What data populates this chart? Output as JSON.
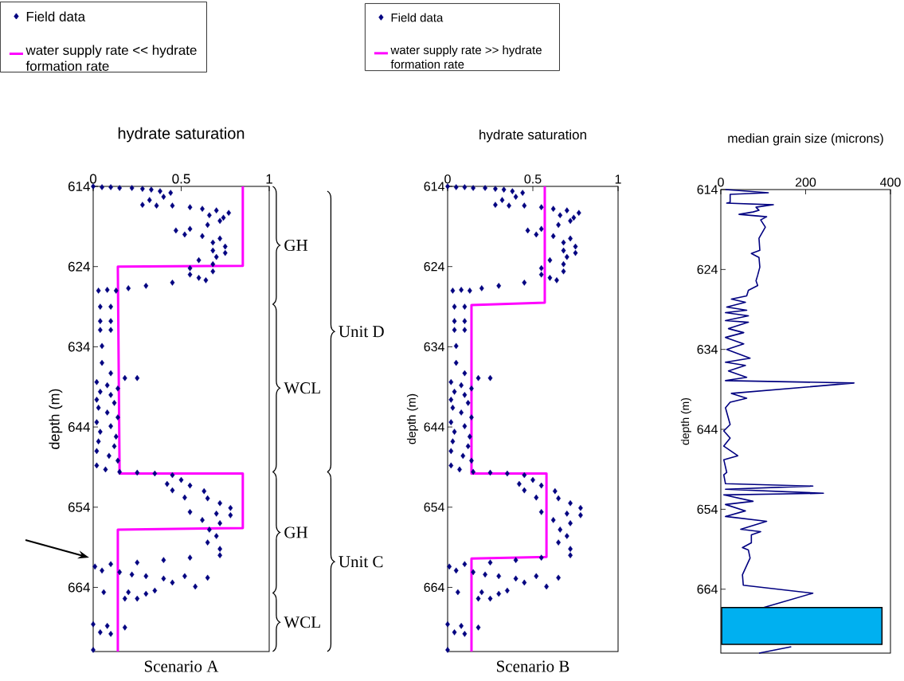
{
  "chart_data": [
    {
      "type": "scatter",
      "title": "hydrate saturation",
      "ylabel": "depth (m)",
      "xlim": [
        0,
        1
      ],
      "ylim": [
        672,
        614
      ],
      "xticks": [
        0,
        0.5,
        1
      ],
      "yticks": [
        614,
        624,
        634,
        644,
        654,
        664
      ],
      "legend": "top left",
      "series": [
        {
          "name": "Field data",
          "marker": "diamond",
          "color": "#000080",
          "x": [
            0.0,
            0.05,
            0.1,
            0.15,
            0.22,
            0.28,
            0.33,
            0.38,
            0.44,
            0.4,
            0.32,
            0.28,
            0.36,
            0.45,
            0.55,
            0.62,
            0.7,
            0.77,
            0.66,
            0.74,
            0.72,
            0.65,
            0.55,
            0.47,
            0.52,
            0.62,
            0.72,
            0.68,
            0.75,
            0.68,
            0.75,
            0.7,
            0.6,
            0.68,
            0.55,
            0.68,
            0.55,
            0.6,
            0.64,
            0.45,
            0.3,
            0.2,
            0.08,
            0.03,
            0.13,
            0.04,
            0.1,
            0.04,
            0.1,
            0.04,
            0.1,
            0.05,
            0.05,
            0.1,
            0.18,
            0.25,
            0.02,
            0.08,
            0.14,
            0.04,
            0.1,
            0.02,
            0.12,
            0.03,
            0.08,
            0.14,
            0.02,
            0.1,
            0.04,
            0.13,
            0.03,
            0.12,
            0.02,
            0.09,
            0.14,
            0.02,
            0.07,
            0.15,
            0.25,
            0.35,
            0.45,
            0.5,
            0.42,
            0.55,
            0.45,
            0.63,
            0.52,
            0.65,
            0.72,
            0.78,
            0.55,
            0.7,
            0.78,
            0.62,
            0.72,
            0.66,
            0.7,
            0.65,
            0.72,
            0.72,
            0.55,
            0.4,
            0.25,
            0.1,
            0.01,
            0.05,
            0.15,
            0.22,
            0.3,
            0.4,
            0.52,
            0.65,
            0.45,
            0.58,
            0.35,
            0.2,
            0.06,
            0.3,
            0.25,
            0.18,
            0.0,
            0.08,
            0.18,
            0.04,
            0.1,
            0.0
          ],
          "values": [
            614.0,
            614.1,
            614.1,
            614.2,
            614.2,
            614.3,
            614.4,
            614.6,
            614.8,
            615.3,
            615.7,
            616.3,
            616.4,
            616.4,
            616.6,
            616.8,
            617.0,
            617.3,
            617.6,
            617.9,
            618.3,
            618.8,
            619.3,
            619.5,
            620.0,
            620.2,
            620.5,
            621.0,
            621.5,
            622.0,
            622.3,
            622.8,
            623.2,
            623.7,
            624.2,
            624.6,
            625.0,
            625.4,
            625.7,
            626.0,
            626.4,
            626.7,
            626.9,
            627.0,
            627.0,
            629.0,
            629.0,
            630.8,
            630.8,
            631.9,
            631.9,
            633.9,
            636.0,
            637.3,
            637.9,
            637.9,
            638.4,
            638.8,
            639.2,
            639.6,
            640.0,
            640.6,
            641.0,
            641.6,
            642.2,
            642.8,
            643.4,
            643.9,
            644.6,
            645.2,
            645.8,
            646.4,
            647.0,
            647.6,
            648.2,
            648.8,
            649.3,
            649.6,
            649.7,
            649.8,
            650.0,
            650.6,
            651.1,
            651.3,
            651.9,
            652.0,
            652.8,
            652.9,
            653.5,
            654.1,
            654.6,
            654.8,
            655.0,
            655.6,
            656.0,
            656.8,
            657.6,
            658.4,
            659.2,
            660.0,
            660.3,
            660.6,
            660.9,
            661.1,
            661.4,
            661.9,
            662.1,
            662.4,
            662.6,
            662.9,
            662.6,
            662.8,
            663.4,
            663.9,
            664.4,
            664.6,
            664.6,
            664.8,
            665.4,
            665.4,
            668.6,
            668.8,
            669.0,
            669.6,
            669.8,
            671.8
          ]
        },
        {
          "name": "water supply rate << hydrate formation rate",
          "type": "line",
          "color": "#ff00ff",
          "x": [
            0.85,
            0.85,
            0.14,
            0.15,
            0.85,
            0.85,
            0.14,
            0.14
          ],
          "values": [
            614,
            623.9,
            624.0,
            649.8,
            649.8,
            656.6,
            656.8,
            672
          ]
        }
      ],
      "annotations": [
        "Scenario A",
        "GH",
        "WCL",
        "GH",
        "WCL",
        "Unit D",
        "Unit C"
      ]
    },
    {
      "type": "scatter",
      "title": "hydrate saturation",
      "ylabel": "depth (m)",
      "xlim": [
        0,
        1
      ],
      "ylim": [
        672,
        614
      ],
      "xticks": [
        0,
        0.5,
        1
      ],
      "yticks": [
        614,
        624,
        634,
        644,
        654,
        664
      ],
      "legend": "top left",
      "series": [
        {
          "name": "Field data",
          "marker": "diamond",
          "color": "#000080",
          "x": [
            0.0,
            0.05,
            0.1,
            0.15,
            0.22,
            0.28,
            0.33,
            0.38,
            0.44,
            0.4,
            0.32,
            0.28,
            0.36,
            0.45,
            0.55,
            0.62,
            0.7,
            0.77,
            0.66,
            0.74,
            0.72,
            0.65,
            0.55,
            0.47,
            0.52,
            0.62,
            0.72,
            0.68,
            0.75,
            0.68,
            0.75,
            0.7,
            0.6,
            0.68,
            0.55,
            0.68,
            0.55,
            0.6,
            0.64,
            0.45,
            0.3,
            0.2,
            0.08,
            0.03,
            0.13,
            0.04,
            0.1,
            0.04,
            0.1,
            0.04,
            0.1,
            0.05,
            0.05,
            0.1,
            0.18,
            0.25,
            0.02,
            0.08,
            0.14,
            0.04,
            0.1,
            0.02,
            0.12,
            0.03,
            0.08,
            0.14,
            0.02,
            0.1,
            0.04,
            0.13,
            0.03,
            0.12,
            0.02,
            0.09,
            0.14,
            0.02,
            0.07,
            0.15,
            0.25,
            0.35,
            0.45,
            0.5,
            0.42,
            0.55,
            0.45,
            0.63,
            0.52,
            0.65,
            0.72,
            0.78,
            0.55,
            0.7,
            0.78,
            0.62,
            0.72,
            0.66,
            0.7,
            0.65,
            0.72,
            0.72,
            0.55,
            0.4,
            0.25,
            0.1,
            0.01,
            0.05,
            0.15,
            0.22,
            0.3,
            0.4,
            0.52,
            0.65,
            0.45,
            0.58,
            0.35,
            0.2,
            0.06,
            0.3,
            0.25,
            0.18,
            0.0,
            0.08,
            0.18,
            0.04,
            0.1,
            0.0
          ],
          "values": [
            614.0,
            614.1,
            614.1,
            614.2,
            614.2,
            614.3,
            614.4,
            614.6,
            614.8,
            615.3,
            615.7,
            616.3,
            616.4,
            616.4,
            616.6,
            616.8,
            617.0,
            617.3,
            617.6,
            617.9,
            618.3,
            618.8,
            619.3,
            619.5,
            620.0,
            620.2,
            620.5,
            621.0,
            621.5,
            622.0,
            622.3,
            622.8,
            623.2,
            623.7,
            624.2,
            624.6,
            625.0,
            625.4,
            625.7,
            626.0,
            626.4,
            626.7,
            626.9,
            627.0,
            627.0,
            629.0,
            629.0,
            630.8,
            630.8,
            631.9,
            631.9,
            633.9,
            636.0,
            637.3,
            637.9,
            637.9,
            638.4,
            638.8,
            639.2,
            639.6,
            640.0,
            640.6,
            641.0,
            641.6,
            642.2,
            642.8,
            643.4,
            643.9,
            644.6,
            645.2,
            645.8,
            646.4,
            647.0,
            647.6,
            648.2,
            648.8,
            649.3,
            649.6,
            649.7,
            649.8,
            650.0,
            650.6,
            651.1,
            651.3,
            651.9,
            652.0,
            652.8,
            652.9,
            653.5,
            654.1,
            654.6,
            654.8,
            655.0,
            655.6,
            656.0,
            656.8,
            657.6,
            658.4,
            659.2,
            660.0,
            660.3,
            660.6,
            660.9,
            661.1,
            661.4,
            661.9,
            662.1,
            662.4,
            662.6,
            662.9,
            662.6,
            662.8,
            663.4,
            663.9,
            664.4,
            664.6,
            664.6,
            664.8,
            665.4,
            665.4,
            668.6,
            668.8,
            669.0,
            669.6,
            669.8,
            671.8
          ]
        },
        {
          "name": "water supply rate >> hydrate formation rate",
          "type": "line",
          "color": "#ff00ff",
          "x": [
            0.57,
            0.57,
            0.14,
            0.14,
            0.58,
            0.58,
            0.14,
            0.14
          ],
          "values": [
            614,
            628.5,
            628.8,
            649.8,
            649.8,
            660.2,
            660.4,
            672
          ]
        }
      ],
      "annotations": [
        "Scenario B"
      ]
    },
    {
      "type": "line",
      "title": "median grain size (microns)",
      "ylabel": "depth (m)",
      "xlim": [
        0,
        400
      ],
      "ylim": [
        672,
        614
      ],
      "xticks": [
        0,
        200,
        400
      ],
      "yticks": [
        614,
        624,
        634,
        644,
        654,
        664
      ],
      "series": [
        {
          "color": "#000080",
          "x": [
            11,
            112,
            22,
            22,
            14,
            124,
            83,
            90,
            76,
            43,
            108,
            94,
            105,
            90,
            92,
            72,
            90,
            92,
            87,
            83,
            87,
            65,
            61,
            25,
            58,
            14,
            61,
            11,
            65,
            11,
            65,
            18,
            54,
            11,
            54,
            14,
            69,
            11,
            58,
            18,
            61,
            11,
            314,
            25,
            61,
            22,
            11,
            22,
            7,
            22,
            7,
            40,
            7,
            14,
            7,
            11,
            217,
            11,
            242,
            7,
            76,
            11,
            58,
            11,
            108,
            47,
            94,
            72,
            72,
            51,
            65,
            69,
            51,
            53,
            217,
            101,
            null,
            166,
            90
          ],
          "values": [
            614.0,
            614.4,
            614.6,
            615.6,
            615.7,
            615.9,
            616.2,
            616.6,
            616.8,
            617.1,
            617.4,
            617.8,
            618.7,
            620.1,
            621.6,
            622.0,
            622.5,
            623.7,
            624.7,
            625.4,
            626.0,
            626.6,
            627.3,
            627.7,
            628.1,
            628.7,
            629.1,
            629.4,
            629.8,
            630.4,
            630.6,
            631.4,
            631.9,
            632.5,
            633.3,
            634.0,
            635.1,
            635.6,
            636.0,
            636.7,
            637.5,
            637.9,
            638.2,
            639.5,
            640.1,
            640.6,
            641.3,
            643.4,
            644.2,
            645.1,
            646.1,
            647.3,
            647.8,
            649.4,
            649.7,
            650.8,
            651.1,
            651.5,
            652.0,
            652.2,
            653.0,
            653.4,
            654.2,
            654.9,
            655.5,
            656.5,
            656.8,
            657.2,
            658.2,
            658.8,
            659.1,
            660.1,
            662.2,
            663.5,
            664.5,
            666.3,
            null,
            671.2,
            672.0
          ]
        }
      ],
      "bands": [
        {
          "axis": "y",
          "from": 666.3,
          "to": 670.9,
          "color": "#00b0f0"
        }
      ]
    }
  ]
}
